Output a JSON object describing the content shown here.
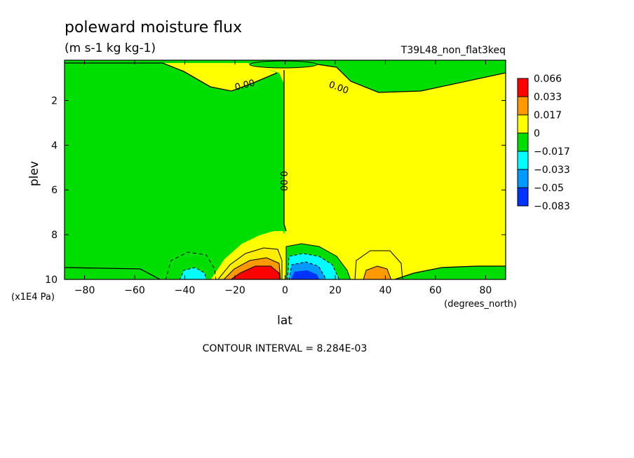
{
  "chart_data": {
    "type": "contour",
    "title": "poleward moisture flux",
    "units": "(m s-1 kg kg-1)",
    "run_label": "T39L48_non_flat3keq",
    "xlabel": "lat",
    "x_units": "(degrees_north)",
    "ylabel": "plev",
    "y_units": "(x1E4 Pa)",
    "xlim": [
      -88,
      88
    ],
    "ylim": [
      0.2,
      10
    ],
    "y_inverted": true,
    "x_ticks": [
      -80,
      -60,
      -40,
      -20,
      0,
      20,
      40,
      60,
      80
    ],
    "y_ticks": [
      2,
      4,
      6,
      8,
      10
    ],
    "contour_labels": [
      "0.00",
      "0.00",
      "0.00"
    ],
    "contour_interval_text": "CONTOUR INTERVAL = 8.284E-03",
    "legend": [
      {
        "label": "0.066",
        "color": "#ff0000"
      },
      {
        "label": "0.033",
        "color": "#ff9900"
      },
      {
        "label": "0.017",
        "color": "#ffff00"
      },
      {
        "label": "0",
        "color": "#00dd00"
      },
      {
        "label": "−0.017",
        "color": "#00ffff"
      },
      {
        "label": "−0.033",
        "color": "#0099ff"
      },
      {
        "label": "−0.05",
        "color": "#0033ff"
      },
      {
        "label": "−0.083",
        "color": null
      }
    ],
    "regions": [
      {
        "sign": "negative",
        "level": "weak",
        "lat_range": [
          -88,
          0
        ],
        "plev_range": [
          0.8,
          10
        ]
      },
      {
        "sign": "positive",
        "level": "weak",
        "lat_range": [
          0,
          88
        ],
        "plev_range": [
          0.8,
          9.5
        ]
      },
      {
        "sign": "positive",
        "level": "max",
        "lat_peak": -8,
        "plev_peak": 9.8,
        "value_peak": 0.066
      },
      {
        "sign": "negative",
        "level": "max",
        "lat_peak": 8,
        "plev_peak": 9.8,
        "value_peak": -0.05
      },
      {
        "sign": "negative",
        "level": "moderate",
        "lat_peak": -38,
        "plev_peak": 9.8
      },
      {
        "sign": "positive",
        "level": "moderate",
        "lat_peak": 37,
        "plev_peak": 9.8
      }
    ]
  }
}
